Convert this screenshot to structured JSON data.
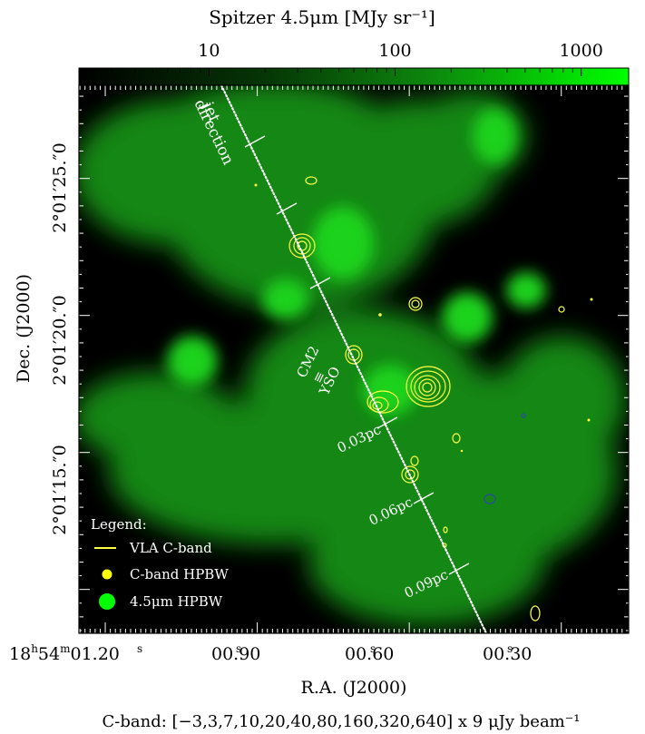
{
  "chart_data": {
    "type": "image",
    "colorbar": {
      "label": "Spitzer 4.5μm [MJy sr⁻¹]",
      "scale": "log",
      "range": [
        2,
        1800
      ],
      "ticks": [
        {
          "value": 10,
          "label": "10"
        },
        {
          "value": 100,
          "label": "100"
        },
        {
          "value": 1000,
          "label": "1000"
        }
      ]
    },
    "axes": {
      "xlabel": "R.A. (J2000)",
      "ylabel": "Dec. (J2000)",
      "x_ticks": [
        "18h54m01.s20",
        "00.s90",
        "00.s60",
        "00.s30"
      ],
      "x_tick_values_sec": [
        1.2,
        0.9,
        0.6,
        0.3
      ],
      "y_ticks": [
        "2°01′25.″0",
        "2°01′20.″0",
        "2°01′15.″0"
      ],
      "y_tick_values_arcsec": [
        25,
        20,
        15
      ],
      "x_range_sec": [
        1.252,
        0.167
      ],
      "y_range_arcsec": [
        8.4,
        28.4
      ]
    },
    "annotations": {
      "jet_label": "jet direction",
      "source_label_1": "CM2",
      "source_label_2": "≡",
      "source_label_3": "YSO",
      "distance_labels": [
        "0.03pc",
        "0.06pc",
        "0.09pc"
      ]
    },
    "legend": {
      "title": "Legend:",
      "entries": [
        "VLA C-band",
        "C-band HPBW",
        "4.5μm HPBW"
      ],
      "position": "bottom-left"
    },
    "caption": "C-band: [−3,3,7,10,20,40,80,160,320,640] x 9 μJy beam⁻¹",
    "contour_levels_uJy": [
      -27,
      27,
      63,
      90,
      180,
      360,
      720,
      1440,
      2880,
      5760
    ],
    "colors": {
      "background": "#000000",
      "emission": "#00ff00",
      "contour": "#ffff44",
      "negative_contour": "#2a4aa8",
      "text": "#ffffff"
    }
  }
}
